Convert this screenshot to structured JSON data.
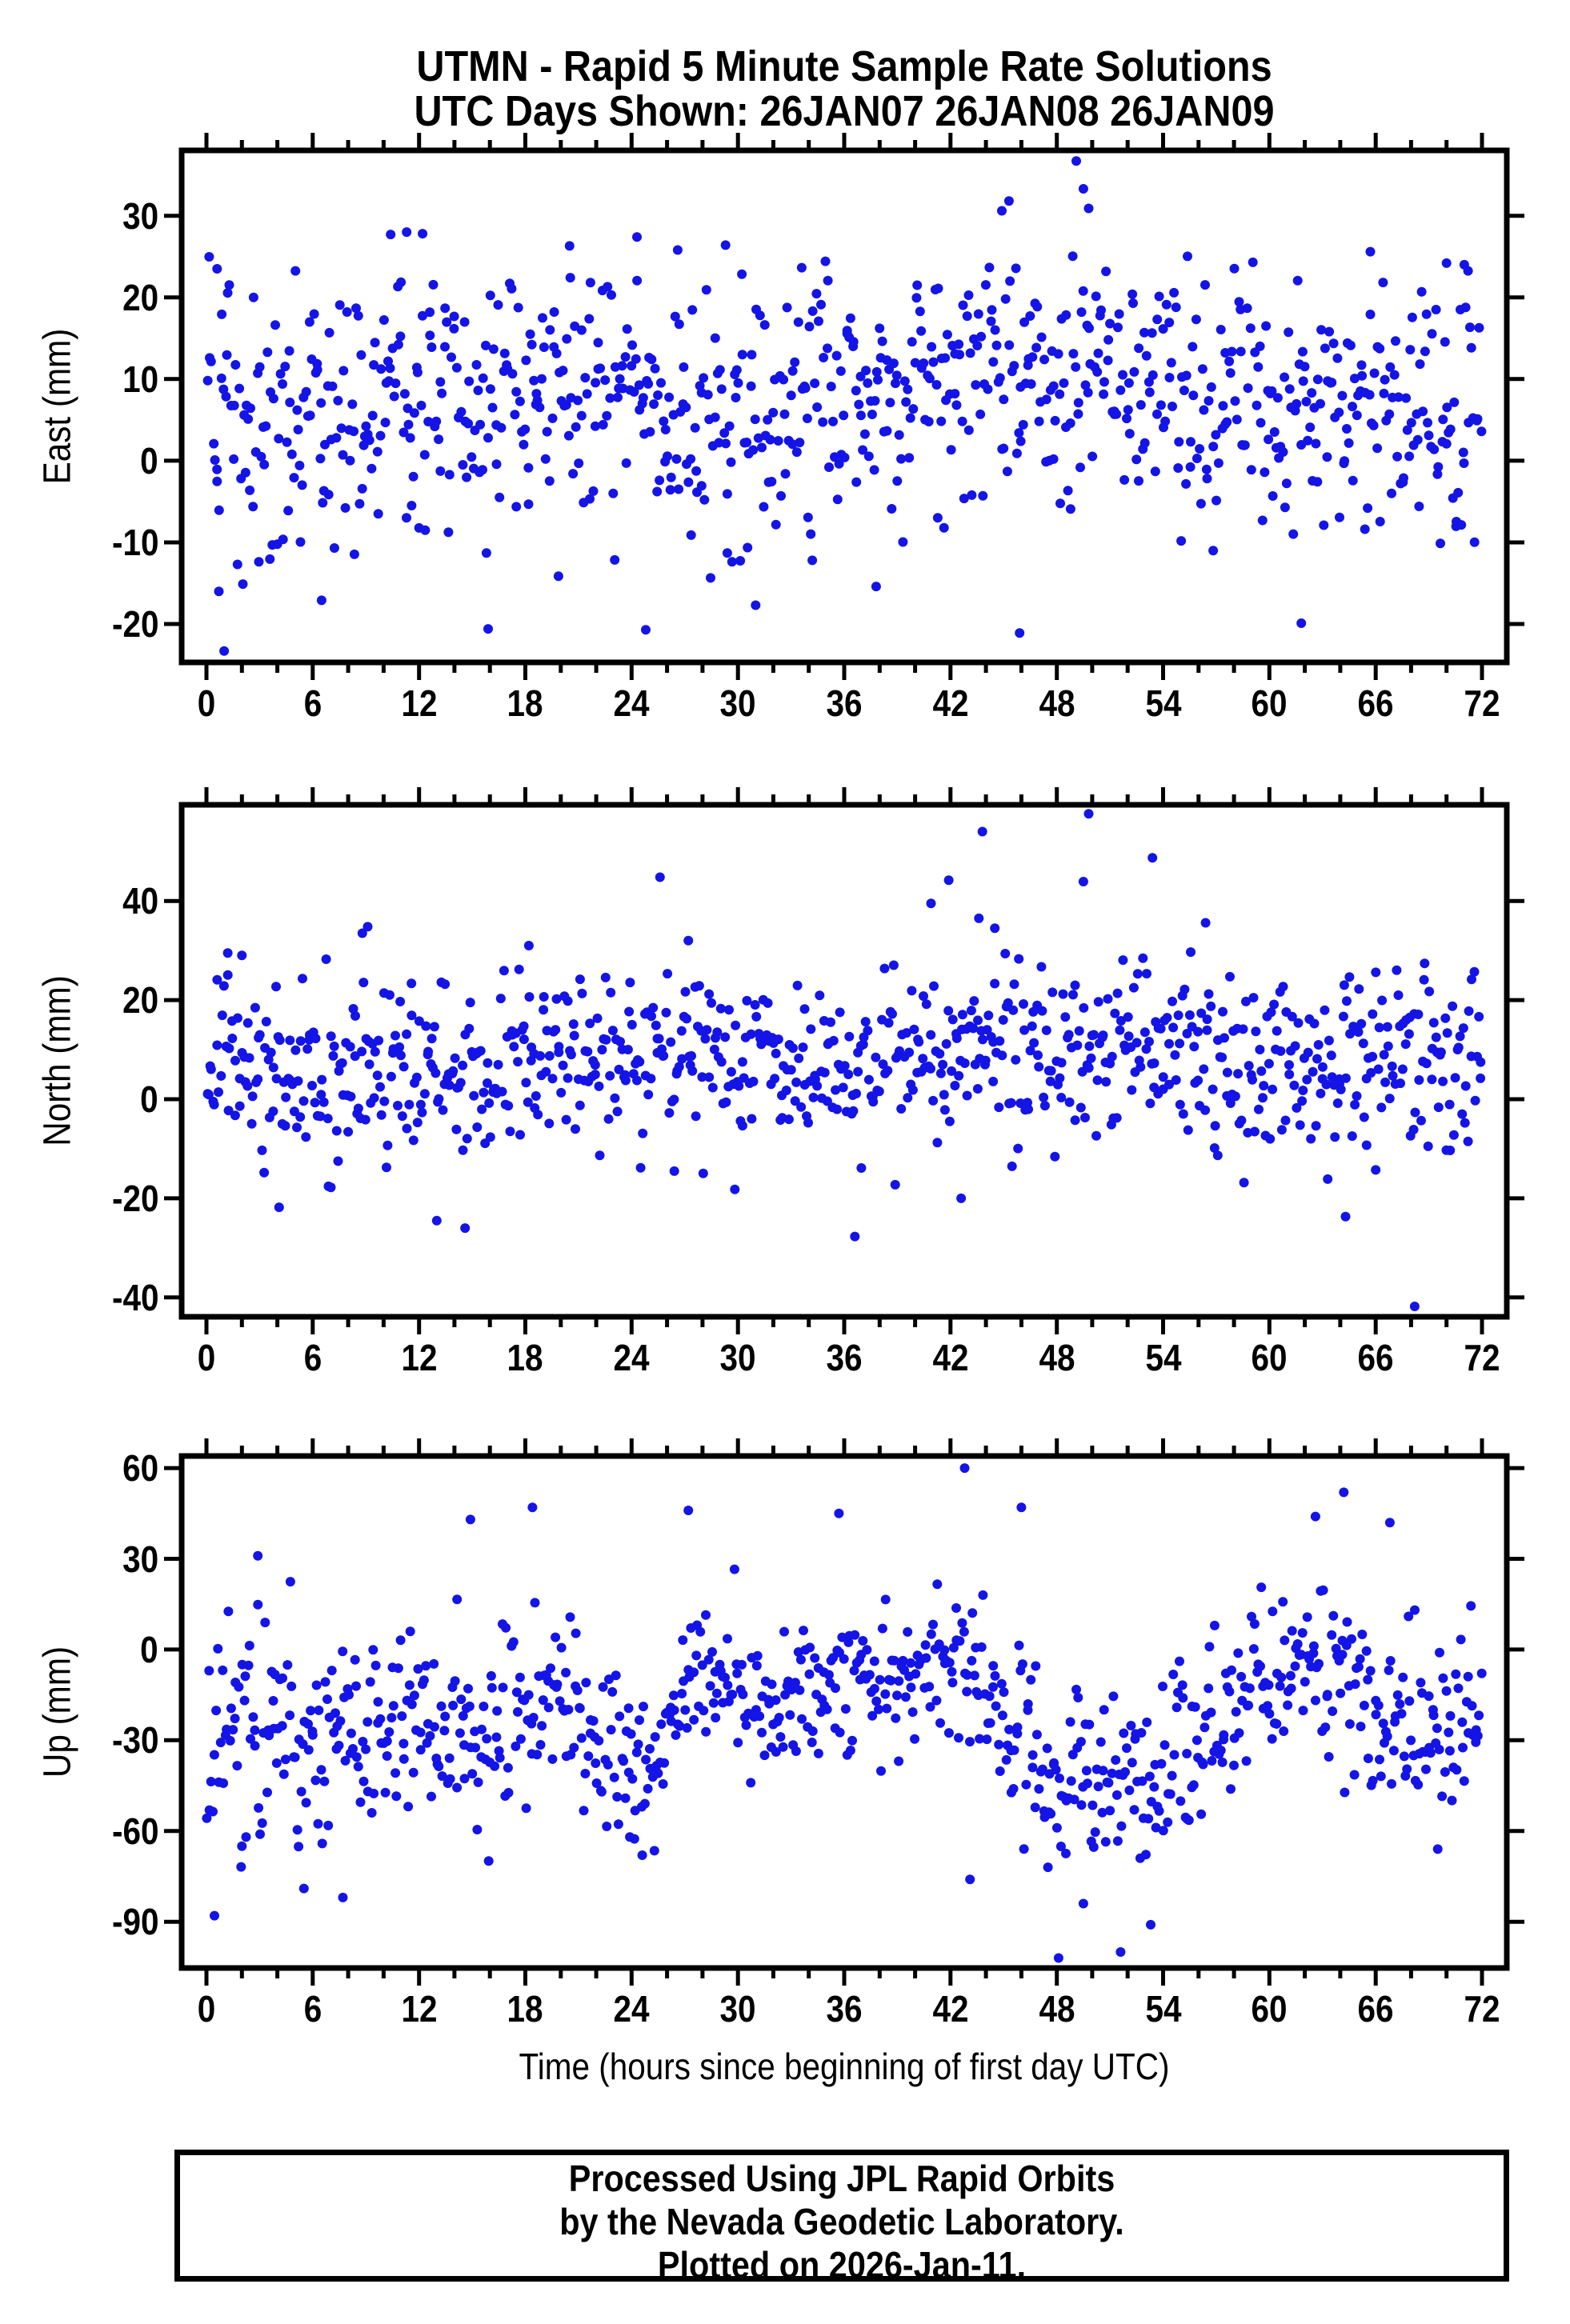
{
  "title": {
    "line1": "UTMN - Rapid 5 Minute Sample Rate Solutions",
    "line2": "UTC Days Shown:  26JAN07 26JAN08 26JAN09"
  },
  "xlabel": "Time (hours since beginning of first day UTC)",
  "xticks": [
    0,
    6,
    12,
    18,
    24,
    30,
    36,
    42,
    48,
    54,
    60,
    66,
    72
  ],
  "footer": {
    "line1": "Processed Using JPL Rapid Orbits",
    "line2": "by the Nevada Geodetic Laboratory.",
    "line3": "Plotted on 2026-Jan-11."
  },
  "colors": {
    "point": "#1414e6",
    "axis": "#000000",
    "background": "#ffffff"
  },
  "chart_data": [
    {
      "type": "scatter",
      "name": "east",
      "ylabel": "East (mm)",
      "xlim": [
        -1.4,
        73.4
      ],
      "ylim": [
        -24.7,
        38.0
      ],
      "yticks": [
        -20,
        -10,
        0,
        10,
        20,
        30
      ],
      "xticks_major": [
        0,
        6,
        12,
        18,
        24,
        30,
        36,
        42,
        48,
        54,
        60,
        66,
        72
      ],
      "xtick_minor_step": 2,
      "marker": {
        "shape": "circle",
        "radius_px": 6,
        "color": "#1414e6"
      },
      "n_points": 840,
      "sample_interval_minutes": 5,
      "generator": {
        "seed": 20070126,
        "mean_keypoints": [
          [
            0,
            3
          ],
          [
            4,
            6
          ],
          [
            8,
            7
          ],
          [
            12,
            9
          ],
          [
            16,
            6
          ],
          [
            20,
            7
          ],
          [
            24,
            8
          ],
          [
            28,
            6
          ],
          [
            32,
            6
          ],
          [
            36,
            8
          ],
          [
            40,
            9
          ],
          [
            44,
            11
          ],
          [
            48,
            12
          ],
          [
            52,
            9
          ],
          [
            56,
            8
          ],
          [
            60,
            8
          ],
          [
            64,
            4
          ],
          [
            68,
            5
          ],
          [
            72,
            5
          ]
        ],
        "std_keypoints": [
          [
            0,
            9
          ],
          [
            12,
            8
          ],
          [
            24,
            8
          ],
          [
            36,
            7.5
          ],
          [
            48,
            8
          ],
          [
            60,
            7.5
          ],
          [
            72,
            8.5
          ]
        ],
        "clamp": [
          -15.5,
          25.5
        ]
      },
      "outliers": [
        [
          49.1,
          36.7
        ],
        [
          49.5,
          33.3
        ],
        [
          49.8,
          30.9
        ],
        [
          45.3,
          31.8
        ],
        [
          44.9,
          30.6
        ],
        [
          10.4,
          27.7
        ],
        [
          11.3,
          28.0
        ],
        [
          12.2,
          27.8
        ],
        [
          24.3,
          27.4
        ],
        [
          20.5,
          26.3
        ],
        [
          26.6,
          25.8
        ],
        [
          29.3,
          26.4
        ],
        [
          65.7,
          25.6
        ],
        [
          70.0,
          24.2
        ],
        [
          71.0,
          24.0
        ],
        [
          0.6,
          23.5
        ],
        [
          1.0,
          -23.3
        ],
        [
          15.9,
          -20.6
        ],
        [
          24.8,
          -20.7
        ],
        [
          45.9,
          -21.1
        ],
        [
          61.8,
          -19.9
        ],
        [
          6.5,
          -17.1
        ],
        [
          31.0,
          -17.7
        ],
        [
          37.8,
          -15.4
        ],
        [
          34.2,
          -12.2
        ],
        [
          0.7,
          -16.0
        ]
      ]
    },
    {
      "type": "scatter",
      "name": "north",
      "ylabel": "North (mm)",
      "xlim": [
        -1.4,
        73.4
      ],
      "ylim": [
        -43.9,
        59.4
      ],
      "yticks": [
        -40,
        -20,
        0,
        20,
        40
      ],
      "xticks_major": [
        0,
        6,
        12,
        18,
        24,
        30,
        36,
        42,
        48,
        54,
        60,
        66,
        72
      ],
      "xtick_minor_step": 2,
      "marker": {
        "shape": "circle",
        "radius_px": 6,
        "color": "#1414e6"
      },
      "n_points": 840,
      "sample_interval_minutes": 5,
      "generator": {
        "seed": 2,
        "mean_keypoints": [
          [
            0,
            4
          ],
          [
            6,
            8
          ],
          [
            12,
            6
          ],
          [
            18,
            6
          ],
          [
            24,
            8
          ],
          [
            30,
            7
          ],
          [
            36,
            6
          ],
          [
            42,
            10
          ],
          [
            48,
            9
          ],
          [
            54,
            8
          ],
          [
            60,
            6
          ],
          [
            66,
            5
          ],
          [
            72,
            9
          ]
        ],
        "std_keypoints": [
          [
            0,
            9
          ],
          [
            24,
            8.5
          ],
          [
            48,
            9.5
          ],
          [
            72,
            9
          ]
        ],
        "clamp": [
          -19,
          30
        ]
      },
      "outliers": [
        [
          49.8,
          57.6
        ],
        [
          43.8,
          54.0
        ],
        [
          53.4,
          48.7
        ],
        [
          25.6,
          44.8
        ],
        [
          41.9,
          44.2
        ],
        [
          49.5,
          43.9
        ],
        [
          40.9,
          39.5
        ],
        [
          43.6,
          36.5
        ],
        [
          44.5,
          34.5
        ],
        [
          56.4,
          35.6
        ],
        [
          9.1,
          34.8
        ],
        [
          8.8,
          33.5
        ],
        [
          27.2,
          32.0
        ],
        [
          1.2,
          29.5
        ],
        [
          2.0,
          29.0
        ],
        [
          18.2,
          31.0
        ],
        [
          68.2,
          -41.8
        ],
        [
          36.6,
          -27.7
        ],
        [
          14.6,
          -26.0
        ],
        [
          4.1,
          -21.8
        ],
        [
          64.3,
          -23.7
        ],
        [
          42.6,
          -20.0
        ],
        [
          13.0,
          -24.5
        ]
      ]
    },
    {
      "type": "scatter",
      "name": "up",
      "ylabel": "Up (mm)",
      "xlim": [
        -1.4,
        73.4
      ],
      "ylim": [
        -105.3,
        64.0
      ],
      "yticks": [
        -90,
        -60,
        -30,
        0,
        30,
        60
      ],
      "xticks_major": [
        0,
        6,
        12,
        18,
        24,
        30,
        36,
        42,
        48,
        54,
        60,
        66,
        72
      ],
      "xtick_minor_step": 2,
      "marker": {
        "shape": "circle",
        "radius_px": 6,
        "color": "#1414e6"
      },
      "n_points": 840,
      "sample_interval_minutes": 5,
      "generator": {
        "seed": 99,
        "mean_keypoints": [
          [
            0,
            -42
          ],
          [
            1,
            -30
          ],
          [
            2,
            -22
          ],
          [
            4,
            -22
          ],
          [
            6,
            -30
          ],
          [
            8,
            -32
          ],
          [
            10,
            -25
          ],
          [
            12,
            -22
          ],
          [
            14,
            -28
          ],
          [
            16,
            -28
          ],
          [
            18,
            -20
          ],
          [
            20,
            -18
          ],
          [
            22,
            -28
          ],
          [
            24,
            -38
          ],
          [
            25,
            -45
          ],
          [
            26,
            -20
          ],
          [
            27,
            -8
          ],
          [
            28,
            -6
          ],
          [
            30,
            -14
          ],
          [
            32,
            -20
          ],
          [
            34,
            -14
          ],
          [
            36,
            -10
          ],
          [
            38,
            -12
          ],
          [
            40,
            -8
          ],
          [
            42,
            -4
          ],
          [
            44,
            -12
          ],
          [
            45,
            -20
          ],
          [
            46,
            -28
          ],
          [
            47,
            -40
          ],
          [
            48,
            -48
          ],
          [
            50,
            -52
          ],
          [
            52,
            -48
          ],
          [
            54,
            -38
          ],
          [
            55,
            -30
          ],
          [
            56,
            -24
          ],
          [
            58,
            -22
          ],
          [
            60,
            -12
          ],
          [
            62,
            -8
          ],
          [
            63,
            -4
          ],
          [
            64,
            -10
          ],
          [
            66,
            -20
          ],
          [
            68,
            -28
          ],
          [
            70,
            -28
          ],
          [
            72,
            -20
          ]
        ],
        "std_keypoints": [
          [
            0,
            22
          ],
          [
            4,
            20
          ],
          [
            8,
            18
          ],
          [
            12,
            14
          ],
          [
            16,
            16
          ],
          [
            20,
            14
          ],
          [
            24,
            16
          ],
          [
            28,
            12
          ],
          [
            32,
            13
          ],
          [
            36,
            12
          ],
          [
            40,
            12
          ],
          [
            44,
            14
          ],
          [
            48,
            18
          ],
          [
            52,
            18
          ],
          [
            56,
            14
          ],
          [
            60,
            13
          ],
          [
            64,
            14
          ],
          [
            68,
            14
          ],
          [
            72,
            15
          ]
        ],
        "clamp": [
          -72,
          30
        ]
      },
      "outliers": [
        [
          42.8,
          60.0
        ],
        [
          64.2,
          52.0
        ],
        [
          18.4,
          47.0
        ],
        [
          27.2,
          46.0
        ],
        [
          46.0,
          47.0
        ],
        [
          35.7,
          45.0
        ],
        [
          62.6,
          44.0
        ],
        [
          66.8,
          42.0
        ],
        [
          14.9,
          43.0
        ],
        [
          2.9,
          31.0
        ],
        [
          48.1,
          -102.0
        ],
        [
          51.6,
          -100.0
        ],
        [
          53.3,
          -91.0
        ],
        [
          49.5,
          -84.0
        ],
        [
          43.1,
          -76.0
        ],
        [
          0.45,
          -88.0
        ],
        [
          5.5,
          -79.0
        ],
        [
          7.7,
          -82.0
        ],
        [
          2.0,
          -65.0
        ],
        [
          24.6,
          -68.0
        ],
        [
          23.9,
          -62.0
        ],
        [
          69.5,
          -66.0
        ],
        [
          47.5,
          -72.0
        ]
      ]
    }
  ]
}
